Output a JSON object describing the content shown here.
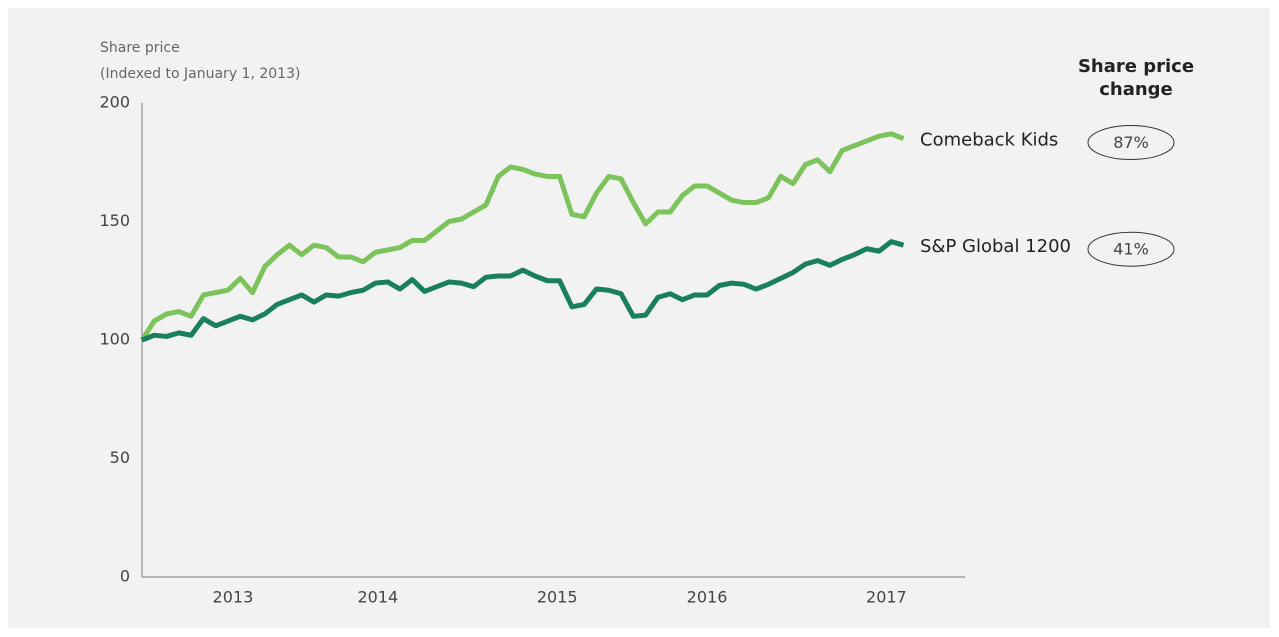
{
  "chart_data": {
    "type": "line",
    "ylabel": [
      "Share price",
      "(Indexed to January 1, 2013)"
    ],
    "change_title": [
      "Share price",
      "change"
    ],
    "x": [
      0,
      1,
      2,
      3,
      4,
      5,
      6,
      7,
      8,
      9,
      10,
      11,
      12,
      13,
      14,
      15,
      16,
      17,
      18,
      19,
      20,
      21,
      22,
      23,
      24,
      25,
      26,
      27,
      28,
      29,
      30,
      31,
      32,
      33,
      34,
      35,
      36,
      37,
      38,
      39,
      40,
      41,
      42,
      43,
      44,
      45,
      46,
      47,
      48,
      49,
      50,
      51,
      52,
      53,
      54,
      55,
      56,
      57,
      58,
      59,
      60,
      61,
      62
    ],
    "xlim": [
      0,
      67
    ],
    "xticks": [
      {
        "value": 7.4,
        "label": "2013"
      },
      {
        "value": 19.2,
        "label": "2014"
      },
      {
        "value": 33.8,
        "label": "2015"
      },
      {
        "value": 46,
        "label": "2016"
      },
      {
        "value": 60.6,
        "label": "2017"
      }
    ],
    "ylim": [
      0,
      200
    ],
    "yticks": [
      0,
      50,
      100,
      150,
      200
    ],
    "grid": false,
    "series": [
      {
        "name": "Comeback Kids",
        "color": "#7dc35b",
        "change": {
          "value": 87,
          "label": "87%"
        },
        "values": [
          100,
          108,
          111,
          112,
          110,
          119,
          120,
          121,
          126,
          120,
          131,
          136,
          140,
          136,
          140,
          139,
          135,
          135,
          133,
          137,
          138,
          139,
          142,
          142,
          146,
          150,
          151,
          154,
          157,
          169,
          173,
          172,
          170,
          169,
          169,
          153,
          152,
          162,
          169,
          168,
          158,
          149,
          154,
          154,
          161,
          165,
          165,
          162,
          159,
          158,
          158,
          160,
          169,
          166,
          174,
          176,
          171,
          180,
          182,
          184,
          186,
          187,
          185
        ]
      },
      {
        "name": "S&P Global 1200",
        "color": "#1a7f5e",
        "change": {
          "value": 41,
          "label": "41%"
        },
        "values": [
          100,
          102,
          101.5,
          103,
          102,
          109,
          106,
          108,
          110,
          108.5,
          111,
          115,
          117,
          119,
          116,
          119,
          118.5,
          120,
          121,
          124,
          124.5,
          121.5,
          125.5,
          120.5,
          122.5,
          124.5,
          124,
          122.5,
          126.5,
          127,
          127,
          129.5,
          127,
          125,
          125,
          114,
          115,
          121.5,
          121,
          119.5,
          110,
          110.5,
          118,
          119.5,
          117,
          119,
          119,
          123,
          124,
          123.5,
          121.5,
          123.5,
          126,
          128.5,
          132,
          133.5,
          131.5,
          134,
          136,
          138.5,
          137.5,
          141.5,
          140
        ]
      }
    ]
  }
}
